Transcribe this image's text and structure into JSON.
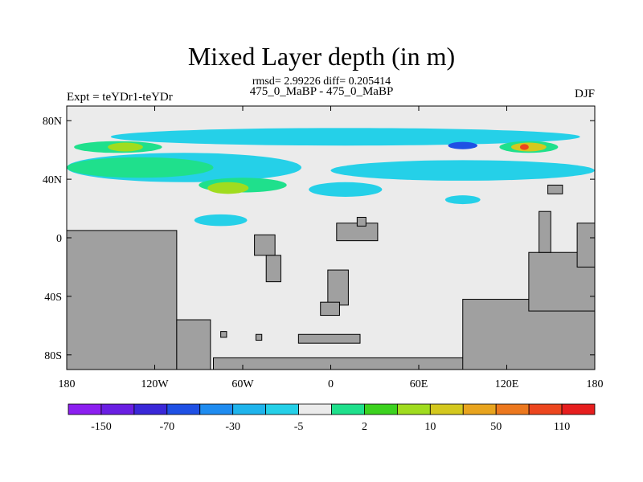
{
  "title": "Mixed Layer depth (in m)",
  "stats": "rmsd= 2.99226 diff= 0.205414",
  "subtitle": "475_0_MaBP - 475_0_MaBP",
  "expt_label": "Expt = teYDr1-teYDr",
  "season": "DJF",
  "chart_data": {
    "type": "heatmap",
    "title": "Mixed Layer depth (in m)",
    "projection": "cylindrical-equidistant",
    "xlim": [
      -180,
      180
    ],
    "ylim": [
      -90,
      90
    ],
    "x_ticks": [
      {
        "value": -180,
        "label": "180"
      },
      {
        "value": -120,
        "label": "120W"
      },
      {
        "value": -60,
        "label": "60W"
      },
      {
        "value": 0,
        "label": "0"
      },
      {
        "value": 60,
        "label": "60E"
      },
      {
        "value": 120,
        "label": "120E"
      },
      {
        "value": 180,
        "label": "180"
      }
    ],
    "y_ticks": [
      {
        "value": 80,
        "label": "80N"
      },
      {
        "value": 40,
        "label": "40N"
      },
      {
        "value": 0,
        "label": "0"
      },
      {
        "value": -40,
        "label": "40S"
      },
      {
        "value": -80,
        "label": "80S"
      }
    ],
    "colorbar": {
      "colors": [
        "#8c1ff0",
        "#6a1fe3",
        "#3a28d8",
        "#1f50e4",
        "#1f8cf0",
        "#1fb4ec",
        "#25d0e8",
        "#ebebeb",
        "#1fe08c",
        "#3cd21f",
        "#a0dc1f",
        "#d4c81e",
        "#e8a41e",
        "#ec781e",
        "#ec461e",
        "#e61e1e"
      ],
      "tick_labels": [
        "-150",
        "-70",
        "-30",
        "-5",
        "2",
        "10",
        "50",
        "110"
      ]
    },
    "colors": {
      "background": "#ebebeb",
      "land": "#a0a0a0",
      "land_outline": "#000000"
    },
    "land_blocks": [
      {
        "name": "west-antarctic-coast",
        "lon0": -180,
        "lon1": -105,
        "lat0": -90,
        "lat1": 5
      },
      {
        "name": "pacific-sector-land",
        "lon0": -105,
        "lon1": -82,
        "lat0": -90,
        "lat1": -56
      },
      {
        "name": "antarctic-strip",
        "lon0": -80,
        "lon1": 100,
        "lat0": -90,
        "lat1": -82
      },
      {
        "name": "east-antarctic-coast",
        "lon0": 90,
        "lon1": 180,
        "lat0": -90,
        "lat1": -42
      },
      {
        "name": "indian-sector-rise",
        "lon0": 135,
        "lon1": 180,
        "lat0": -50,
        "lat1": -10
      },
      {
        "name": "eastern-ridge",
        "lon0": 168,
        "lon1": 180,
        "lat0": -20,
        "lat1": 10
      },
      {
        "name": "south-atlantic-island",
        "lon0": -2,
        "lon1": 12,
        "lat0": -46,
        "lat1": -22
      },
      {
        "name": "south-atlantic-tail",
        "lon0": -7,
        "lon1": 6,
        "lat0": -53,
        "lat1": -44
      },
      {
        "name": "midocean-block",
        "lon0": -52,
        "lon1": -38,
        "lat0": -12,
        "lat1": 2
      },
      {
        "name": "midocean-block-2",
        "lon0": -44,
        "lon1": -34,
        "lat0": -30,
        "lat1": -12
      },
      {
        "name": "north-atlantic-block",
        "lon0": 4,
        "lon1": 32,
        "lat0": -2,
        "lat1": 10
      },
      {
        "name": "north-atlantic-nub",
        "lon0": 18,
        "lon1": 24,
        "lat0": 8,
        "lat1": 14
      },
      {
        "name": "pacific-north-block",
        "lon0": 142,
        "lon1": 150,
        "lat0": -10,
        "lat1": 18
      },
      {
        "name": "pacific-north-block-2",
        "lon0": 148,
        "lon1": 158,
        "lat0": 30,
        "lat1": 36
      },
      {
        "name": "small-south-bar",
        "lon0": -22,
        "lon1": 20,
        "lat0": -72,
        "lat1": -66
      },
      {
        "name": "tiny-islet-1",
        "lon0": -75,
        "lon1": -71,
        "lat0": -68,
        "lat1": -64
      },
      {
        "name": "tiny-islet-2",
        "lon0": -51,
        "lon1": -47,
        "lat0": -70,
        "lat1": -66
      }
    ],
    "anomaly_patches": [
      {
        "name": "north-cyan-band",
        "lon": 10,
        "lat": 69,
        "rx": 160,
        "ry": 6,
        "color": "#25d0e8"
      },
      {
        "name": "north-green-west",
        "lon": -145,
        "lat": 62,
        "rx": 30,
        "ry": 4,
        "color": "#1fe08c"
      },
      {
        "name": "north-yellow-west",
        "lon": -140,
        "lat": 62,
        "rx": 12,
        "ry": 3,
        "color": "#a0dc1f"
      },
      {
        "name": "north-green-east",
        "lon": 135,
        "lat": 62,
        "rx": 20,
        "ry": 4,
        "color": "#1fe08c"
      },
      {
        "name": "north-yellow-east",
        "lon": 135,
        "lat": 62,
        "rx": 12,
        "ry": 3,
        "color": "#d4c81e"
      },
      {
        "name": "north-red-core",
        "lon": 132,
        "lat": 62,
        "rx": 3,
        "ry": 2,
        "color": "#ec461e"
      },
      {
        "name": "north-blue-core",
        "lon": 90,
        "lat": 63,
        "rx": 10,
        "ry": 2.5,
        "color": "#1f50e4"
      },
      {
        "name": "midlat-cyan-west",
        "lon": -100,
        "lat": 48,
        "rx": 80,
        "ry": 10,
        "color": "#25d0e8"
      },
      {
        "name": "midlat-green-west",
        "lon": -130,
        "lat": 48,
        "rx": 50,
        "ry": 7,
        "color": "#1fe08c"
      },
      {
        "name": "midlat-green-center",
        "lon": -60,
        "lat": 36,
        "rx": 30,
        "ry": 5,
        "color": "#1fe08c"
      },
      {
        "name": "midlat-yellow-center",
        "lon": -70,
        "lat": 34,
        "rx": 14,
        "ry": 4,
        "color": "#a0dc1f"
      },
      {
        "name": "midlat-cyan-east",
        "lon": 90,
        "lat": 46,
        "rx": 90,
        "ry": 7,
        "color": "#25d0e8"
      },
      {
        "name": "midlat-cyan-atlantic",
        "lon": 10,
        "lat": 33,
        "rx": 25,
        "ry": 5,
        "color": "#25d0e8"
      },
      {
        "name": "lowlat-cyan-1",
        "lon": -75,
        "lat": 12,
        "rx": 18,
        "ry": 4,
        "color": "#25d0e8"
      },
      {
        "name": "lowlat-cyan-2",
        "lon": 90,
        "lat": 26,
        "rx": 12,
        "ry": 3,
        "color": "#25d0e8"
      },
      {
        "name": "lowlat-green-1",
        "lon": -145,
        "lat": -2,
        "rx": 3,
        "ry": 3,
        "color": "#1fe08c"
      }
    ]
  }
}
